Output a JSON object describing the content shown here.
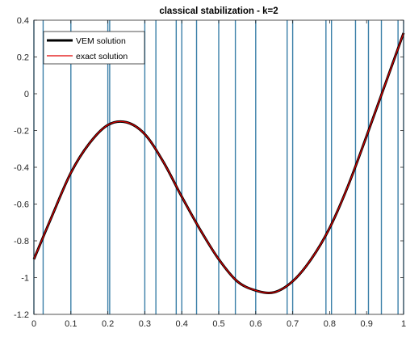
{
  "chart_data": {
    "type": "line",
    "title": "classical stabilization - k=2",
    "xlabel": "",
    "ylabel": "",
    "xlim": [
      0,
      1
    ],
    "ylim": [
      -1.2,
      0.4
    ],
    "xticks": [
      0,
      0.1,
      0.2,
      0.3,
      0.4,
      0.5,
      0.6,
      0.7,
      0.8,
      0.9,
      1
    ],
    "xtick_labels": [
      "0",
      "0.1",
      "0.2",
      "0.3",
      "0.4",
      "0.5",
      "0.6",
      "0.7",
      "0.8",
      "0.9",
      "1"
    ],
    "yticks": [
      0.4,
      0.2,
      0,
      -0.2,
      -0.4,
      -0.6,
      -0.8,
      -1,
      -1.2
    ],
    "ytick_labels": [
      "0.4",
      "0.2",
      "0",
      "-0.2",
      "-0.4",
      "-0.6",
      "-0.8",
      "-1",
      "-1.2"
    ],
    "grid": false,
    "legend_position": "top-left",
    "mesh_nodes": [
      0,
      0.025,
      0.1,
      0.2,
      0.205,
      0.3,
      0.33,
      0.385,
      0.4,
      0.44,
      0.5,
      0.545,
      0.6,
      0.685,
      0.7,
      0.79,
      0.805,
      0.87,
      0.905,
      0.94,
      0.985,
      1
    ],
    "mesh_color": "#3a7fa8",
    "series": [
      {
        "name": "VEM solution",
        "color": "#000000",
        "x": [
          0,
          0.05,
          0.1,
          0.15,
          0.2,
          0.25,
          0.3,
          0.35,
          0.4,
          0.45,
          0.5,
          0.55,
          0.6,
          0.65,
          0.7,
          0.75,
          0.8,
          0.85,
          0.9,
          0.95,
          1
        ],
        "y": [
          -0.9,
          -0.66,
          -0.43,
          -0.27,
          -0.17,
          -0.155,
          -0.22,
          -0.37,
          -0.56,
          -0.74,
          -0.9,
          -1.02,
          -1.07,
          -1.08,
          -1.02,
          -0.9,
          -0.73,
          -0.5,
          -0.23,
          0.05,
          0.33
        ]
      },
      {
        "name": "exact solution",
        "color": "#e00000",
        "x": [
          0,
          0.05,
          0.1,
          0.15,
          0.2,
          0.25,
          0.3,
          0.35,
          0.4,
          0.45,
          0.5,
          0.55,
          0.6,
          0.65,
          0.7,
          0.75,
          0.8,
          0.85,
          0.9,
          0.95,
          1
        ],
        "y": [
          -0.9,
          -0.66,
          -0.43,
          -0.27,
          -0.17,
          -0.155,
          -0.22,
          -0.37,
          -0.56,
          -0.74,
          -0.9,
          -1.02,
          -1.07,
          -1.08,
          -1.02,
          -0.9,
          -0.73,
          -0.5,
          -0.23,
          0.05,
          0.33
        ]
      }
    ]
  }
}
